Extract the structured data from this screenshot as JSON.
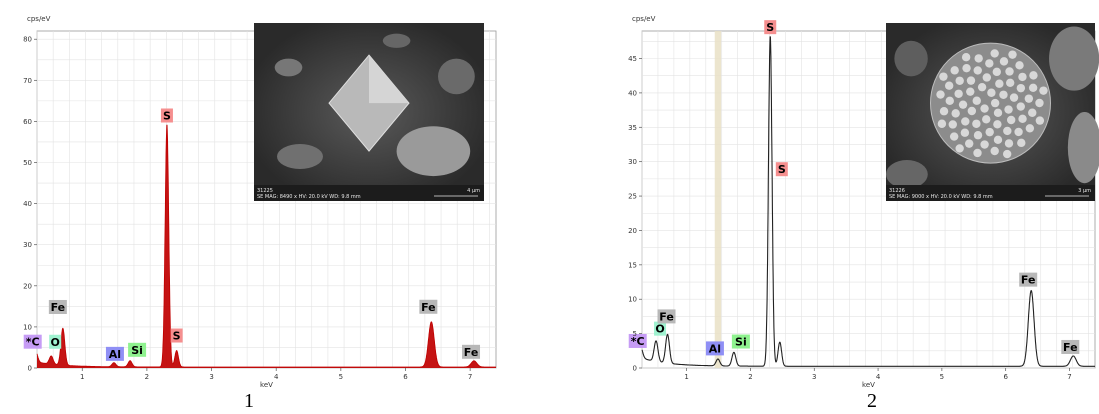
{
  "chart_data": [
    {
      "type": "line",
      "figure_label": "1",
      "ylabel": "cps/eV",
      "xlabel": "keV",
      "xlim": [
        0.3,
        7.4
      ],
      "ylim": [
        0,
        82
      ],
      "xticks": [
        1,
        2,
        3,
        4,
        5,
        6,
        7
      ],
      "yticks": [
        0,
        10,
        20,
        30,
        40,
        50,
        60,
        70,
        80
      ],
      "grid": true,
      "fill": true,
      "series_color": "#c00000",
      "peaks": [
        {
          "element": "C",
          "label_text": "*C",
          "energy": 0.28,
          "height": 2.5,
          "badge_color": "#c69cf5"
        },
        {
          "element": "O",
          "label_text": "O",
          "energy": 0.52,
          "height": 2.0,
          "badge_color": "#9ff2d0"
        },
        {
          "element": "Fe",
          "label_text": "Fe",
          "energy": 0.7,
          "height": 9.0,
          "badge_color": "#b8b8b8"
        },
        {
          "element": "Al",
          "label_text": "Al",
          "energy": 1.49,
          "height": 1.0,
          "badge_color": "#8f8ff5"
        },
        {
          "element": "Si",
          "label_text": "Si",
          "energy": 1.74,
          "height": 1.5,
          "badge_color": "#8ff28f"
        },
        {
          "element": "S",
          "label_text": "S",
          "energy": 2.31,
          "height": 59.0,
          "badge_color": "#f58f8f"
        },
        {
          "element": "S",
          "label_text": "S",
          "energy": 2.46,
          "height": 4.0,
          "badge_color": "#f58f8f"
        },
        {
          "element": "Fe",
          "label_text": "Fe",
          "energy": 6.4,
          "height": 11.0,
          "badge_color": "#b8b8b8"
        },
        {
          "element": "Fe",
          "label_text": "Fe",
          "energy": 7.06,
          "height": 1.5,
          "badge_color": "#b8b8b8"
        }
      ],
      "inset": {
        "caption_id": "31225",
        "caption_params": "SE  MAG: 8490 x  HV: 20.0 kV  WD: 9.8 mm",
        "scale_text": "4 µm"
      }
    },
    {
      "type": "line",
      "figure_label": "2",
      "ylabel": "cps/eV",
      "xlabel": "keV",
      "xlim": [
        0.3,
        7.4
      ],
      "ylim": [
        0,
        49
      ],
      "xticks": [
        1,
        2,
        3,
        4,
        5,
        6,
        7
      ],
      "yticks": [
        0,
        5,
        10,
        15,
        20,
        25,
        30,
        35,
        40,
        45
      ],
      "grid": true,
      "fill": false,
      "series_color": "#222222",
      "highlight_band_keV": [
        1.44,
        1.54
      ],
      "peaks": [
        {
          "element": "C",
          "label_text": "*C",
          "energy": 0.28,
          "height": 1.5,
          "badge_color": "#c69cf5"
        },
        {
          "element": "O",
          "label_text": "O",
          "energy": 0.52,
          "height": 3.0,
          "badge_color": "#9ff2d0"
        },
        {
          "element": "Fe",
          "label_text": "Fe",
          "energy": 0.7,
          "height": 4.2,
          "badge_color": "#b8b8b8"
        },
        {
          "element": "Al",
          "label_text": "Al",
          "energy": 1.49,
          "height": 1.0,
          "badge_color": "#8f8ff5"
        },
        {
          "element": "Si",
          "label_text": "Si",
          "energy": 1.74,
          "height": 2.0,
          "badge_color": "#8ff28f"
        },
        {
          "element": "S",
          "label_text": "S",
          "energy": 2.31,
          "height": 48.0,
          "badge_color": "#f58f8f"
        },
        {
          "element": "S",
          "label_text": "S",
          "energy": 2.46,
          "height": 3.5,
          "badge_color": "#f58f8f"
        },
        {
          "element": "Fe",
          "label_text": "Fe",
          "energy": 6.4,
          "height": 11.0,
          "badge_color": "#b8b8b8"
        },
        {
          "element": "Fe",
          "label_text": "Fe",
          "energy": 7.06,
          "height": 1.5,
          "badge_color": "#b8b8b8"
        }
      ],
      "inset": {
        "caption_id": "31226",
        "caption_params": "SE  MAG: 9000 x  HV: 20.0 kV  WD: 9.8 mm",
        "scale_text": "3 µm"
      }
    }
  ]
}
